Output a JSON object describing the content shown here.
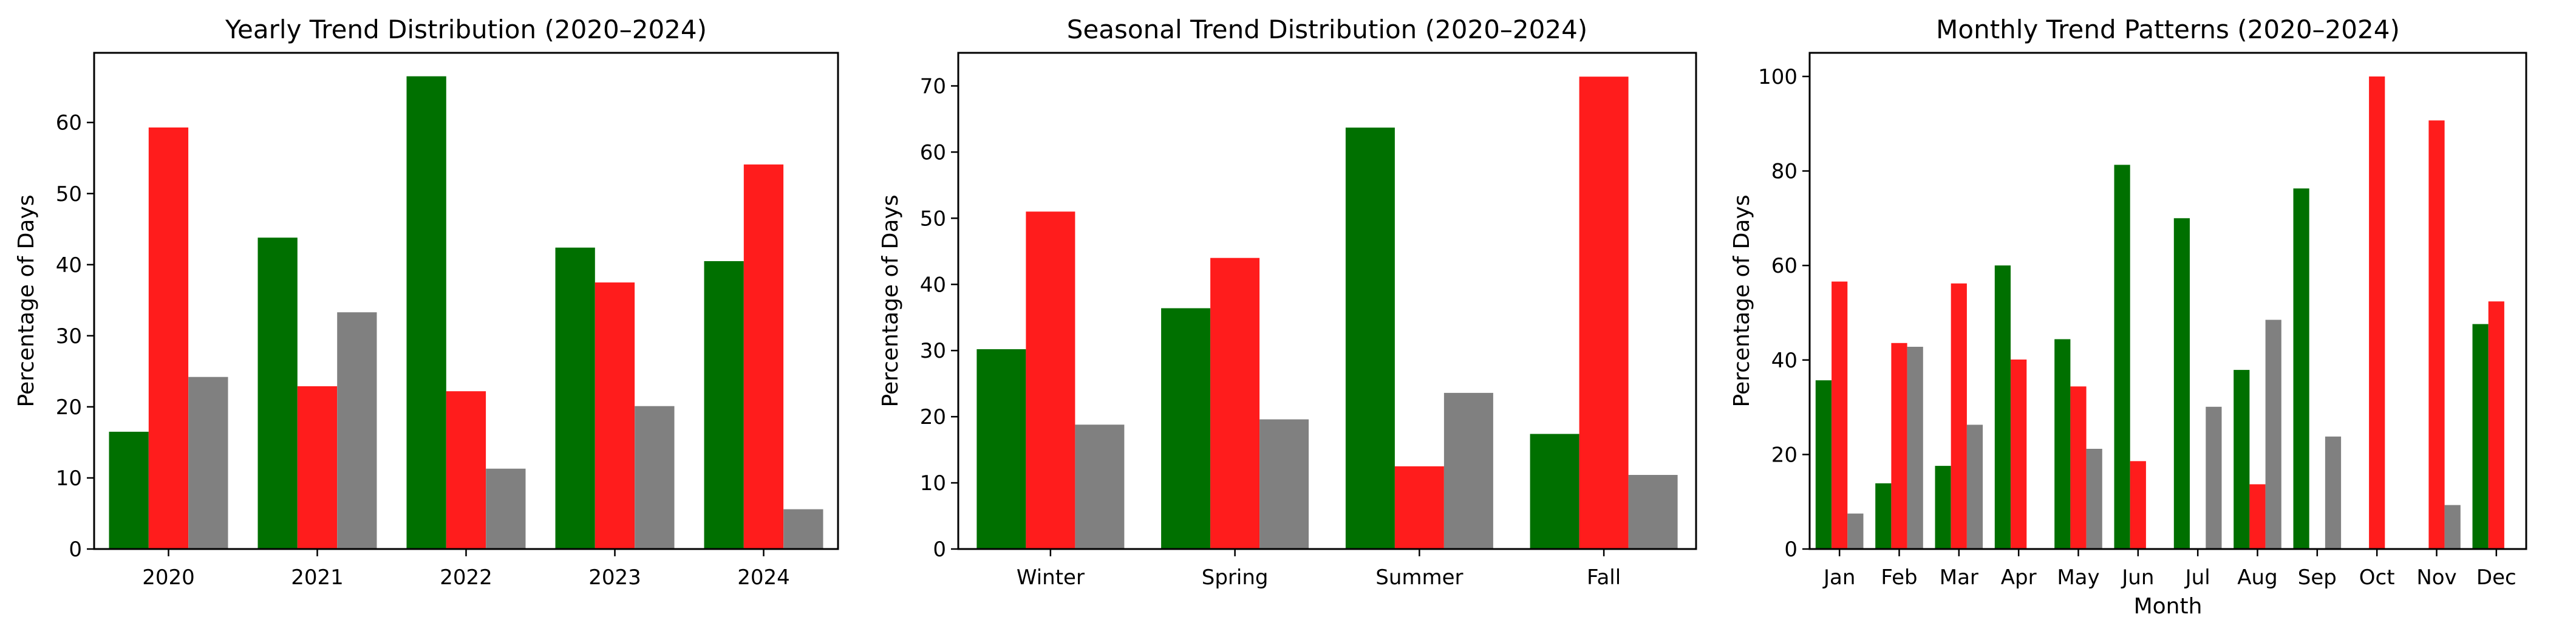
{
  "colors": {
    "series_a": "#007000",
    "series_b": "#ff1c1c",
    "series_c": "#808080"
  },
  "chart_data": [
    {
      "type": "bar",
      "title": "Yearly Trend Distribution (2020–2024)",
      "xlabel": "",
      "ylabel": "Percentage of Days",
      "categories": [
        "2020",
        "2021",
        "2022",
        "2023",
        "2024"
      ],
      "series": [
        {
          "values": [
            16.5,
            43.8,
            66.5,
            42.4,
            40.5
          ]
        },
        {
          "values": [
            59.3,
            22.9,
            22.2,
            37.5,
            54.1
          ]
        },
        {
          "values": [
            24.2,
            33.3,
            11.3,
            20.1,
            5.6
          ]
        }
      ],
      "ylim": [
        0,
        69.8
      ],
      "yticks": [
        0,
        10,
        20,
        30,
        40,
        50,
        60
      ],
      "grid": false,
      "legend": "none"
    },
    {
      "type": "bar",
      "title": "Seasonal Trend Distribution (2020–2024)",
      "xlabel": "",
      "ylabel": "Percentage of Days",
      "categories": [
        "Winter",
        "Spring",
        "Summer",
        "Fall"
      ],
      "series": [
        {
          "values": [
            30.2,
            36.4,
            63.7,
            17.4
          ]
        },
        {
          "values": [
            51.0,
            44.0,
            12.5,
            71.4
          ]
        },
        {
          "values": [
            18.8,
            19.6,
            23.6,
            11.2
          ]
        }
      ],
      "ylim": [
        0,
        75
      ],
      "yticks": [
        0,
        10,
        20,
        30,
        40,
        50,
        60,
        70
      ],
      "grid": false,
      "legend": "none"
    },
    {
      "type": "bar",
      "title": "Monthly Trend Patterns (2020–2024)",
      "xlabel": "Month",
      "ylabel": "Percentage of Days",
      "categories": [
        "Jan",
        "Feb",
        "Mar",
        "Apr",
        "May",
        "Jun",
        "Jul",
        "Aug",
        "Sep",
        "Oct",
        "Nov",
        "Dec"
      ],
      "series": [
        {
          "values": [
            35.7,
            13.9,
            17.6,
            60.0,
            44.4,
            81.3,
            70.0,
            37.9,
            76.3,
            0,
            0,
            47.6
          ]
        },
        {
          "values": [
            56.6,
            43.6,
            56.2,
            40.1,
            34.4,
            18.6,
            0,
            13.7,
            0,
            100.0,
            90.7,
            52.4
          ]
        },
        {
          "values": [
            7.5,
            42.8,
            26.3,
            0,
            21.2,
            0,
            30.1,
            48.5,
            23.8,
            0,
            9.3,
            0
          ]
        }
      ],
      "ylim": [
        0,
        105
      ],
      "yticks": [
        0,
        20,
        40,
        60,
        80,
        100
      ],
      "grid": false,
      "legend": "none"
    }
  ]
}
